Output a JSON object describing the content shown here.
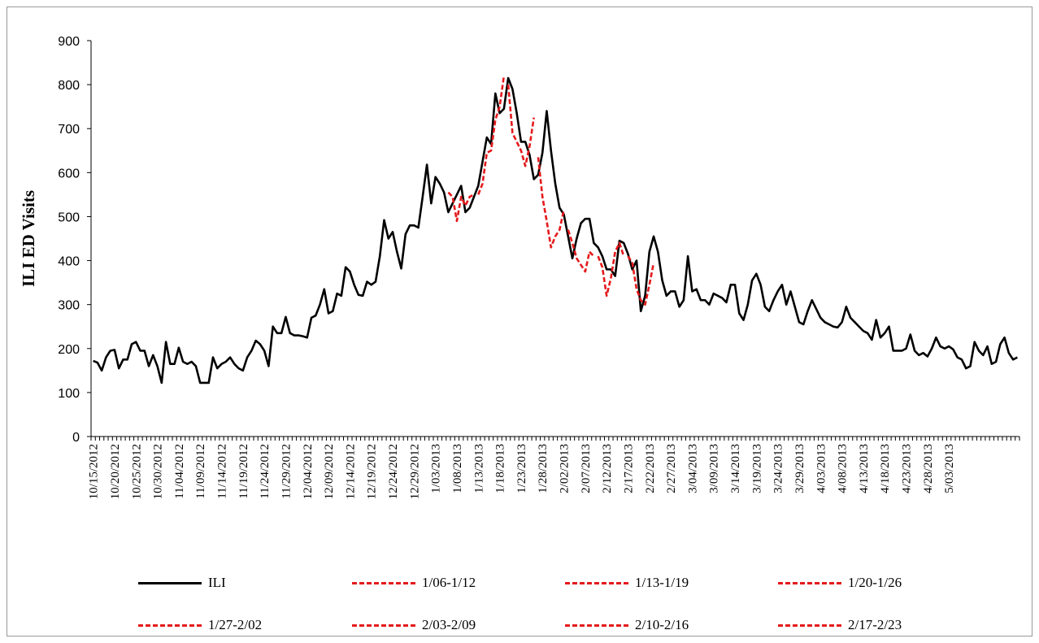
{
  "chart_data": {
    "type": "line",
    "title": "",
    "ylabel": "ILI ED Visits",
    "xlabel": "",
    "ylim": [
      0,
      900
    ],
    "yticks": [
      0,
      100,
      200,
      300,
      400,
      500,
      600,
      700,
      800,
      900
    ],
    "grid": false,
    "legend_position": "bottom",
    "x_tick_labels": [
      "10/15/2012",
      "10/20/2012",
      "10/25/2012",
      "10/30/2012",
      "11/04/2012",
      "11/09/2012",
      "11/14/2012",
      "11/19/2012",
      "11/24/2012",
      "11/29/2012",
      "12/04/2012",
      "12/09/2012",
      "12/14/2012",
      "12/19/2012",
      "12/24/2012",
      "12/29/2012",
      "1/03/2013",
      "1/08/2013",
      "1/13/2013",
      "1/18/2013",
      "1/23/2013",
      "1/28/2013",
      "2/02/2013",
      "2/07/2013",
      "2/12/2013",
      "2/17/2013",
      "2/22/2013",
      "2/27/2013",
      "3/04/2013",
      "3/09/2013",
      "3/14/2013",
      "3/19/2013",
      "3/24/2013",
      "3/29/2013",
      "4/03/2013",
      "4/08/2013",
      "4/13/2013",
      "4/18/2013",
      "4/23/2013",
      "4/28/2013",
      "5/03/2013"
    ],
    "ili": {
      "name": "ILI",
      "color": "#000000",
      "start": "10/15/2012",
      "values": [
        172,
        168,
        150,
        180,
        195,
        197,
        155,
        175,
        175,
        210,
        215,
        195,
        195,
        160,
        185,
        160,
        122,
        215,
        165,
        165,
        202,
        170,
        165,
        170,
        160,
        122,
        122,
        122,
        180,
        155,
        165,
        170,
        180,
        165,
        155,
        150,
        180,
        195,
        218,
        210,
        195,
        160,
        250,
        235,
        235,
        272,
        235,
        230,
        230,
        228,
        225,
        270,
        275,
        300,
        335,
        280,
        285,
        325,
        320,
        385,
        375,
        345,
        322,
        320,
        352,
        345,
        352,
        410,
        492,
        450,
        465,
        420,
        382,
        460,
        480,
        480,
        475,
        545,
        618,
        530,
        590,
        575,
        555,
        510,
        530,
        550,
        570,
        510,
        520,
        545,
        570,
        625,
        680,
        665,
        780,
        735,
        745,
        815,
        790,
        735,
        670,
        670,
        640,
        585,
        595,
        645,
        740,
        650,
        575,
        520,
        505,
        455,
        405,
        450,
        485,
        495,
        495,
        440,
        430,
        410,
        380,
        380,
        365,
        445,
        440,
        415,
        380,
        400,
        285,
        320,
        420,
        455,
        420,
        355,
        320,
        330,
        330,
        295,
        310,
        410,
        330,
        335,
        310,
        310,
        300,
        325,
        320,
        315,
        305,
        345,
        345,
        280,
        265,
        300,
        355,
        370,
        345,
        295,
        285,
        310,
        330,
        345,
        300,
        330,
        295,
        260,
        255,
        285,
        310,
        290,
        270,
        260,
        255,
        250,
        248,
        260,
        295,
        270,
        260,
        250,
        240,
        235,
        220,
        265,
        225,
        235,
        250,
        195,
        195,
        195,
        200,
        232,
        195,
        185,
        190,
        182,
        200,
        225,
        205,
        200,
        205,
        198,
        180,
        175,
        155,
        160,
        215,
        195,
        185,
        205,
        165,
        170,
        210,
        225,
        190,
        175,
        180
      ]
    },
    "forecasts": [
      {
        "name": "1/06-1/12",
        "color": "#e41a1c",
        "start": "1/06/2013",
        "values": [
          555,
          545,
          490,
          545,
          525,
          545,
          550
        ]
      },
      {
        "name": "1/13-1/19",
        "color": "#e41a1c",
        "start": "1/13/2013",
        "values": [
          550,
          575,
          645,
          650,
          720,
          750,
          820
        ]
      },
      {
        "name": "1/20-1/26",
        "color": "#e41a1c",
        "start": "1/20/2013",
        "values": [
          800,
          690,
          670,
          650,
          615,
          660,
          725
        ]
      },
      {
        "name": "1/27-2/02",
        "color": "#e41a1c",
        "start": "1/27/2013",
        "values": [
          635,
          545,
          490,
          430,
          455,
          470,
          515
        ]
      },
      {
        "name": "2/03-2/09",
        "color": "#e41a1c",
        "start": "2/03/2013",
        "values": [
          470,
          440,
          405,
          390,
          375,
          420,
          410
        ]
      },
      {
        "name": "2/10-2/16",
        "color": "#e41a1c",
        "start": "2/10/2013",
        "values": [
          410,
          385,
          320,
          360,
          420,
          440,
          410
        ]
      },
      {
        "name": "2/17-2/23",
        "color": "#e41a1c",
        "start": "2/17/2013",
        "values": [
          410,
          395,
          335,
          310,
          300,
          345,
          395
        ]
      }
    ],
    "legend": [
      {
        "label": "ILI",
        "style": "solid"
      },
      {
        "label": "1/06-1/12",
        "style": "dashed"
      },
      {
        "label": "1/13-1/19",
        "style": "dashed"
      },
      {
        "label": "1/20-1/26",
        "style": "dashed"
      },
      {
        "label": "1/27-2/02",
        "style": "dashed"
      },
      {
        "label": "2/03-2/09",
        "style": "dashed"
      },
      {
        "label": "2/10-2/16",
        "style": "dashed"
      },
      {
        "label": "2/17-2/23",
        "style": "dashed"
      }
    ]
  }
}
